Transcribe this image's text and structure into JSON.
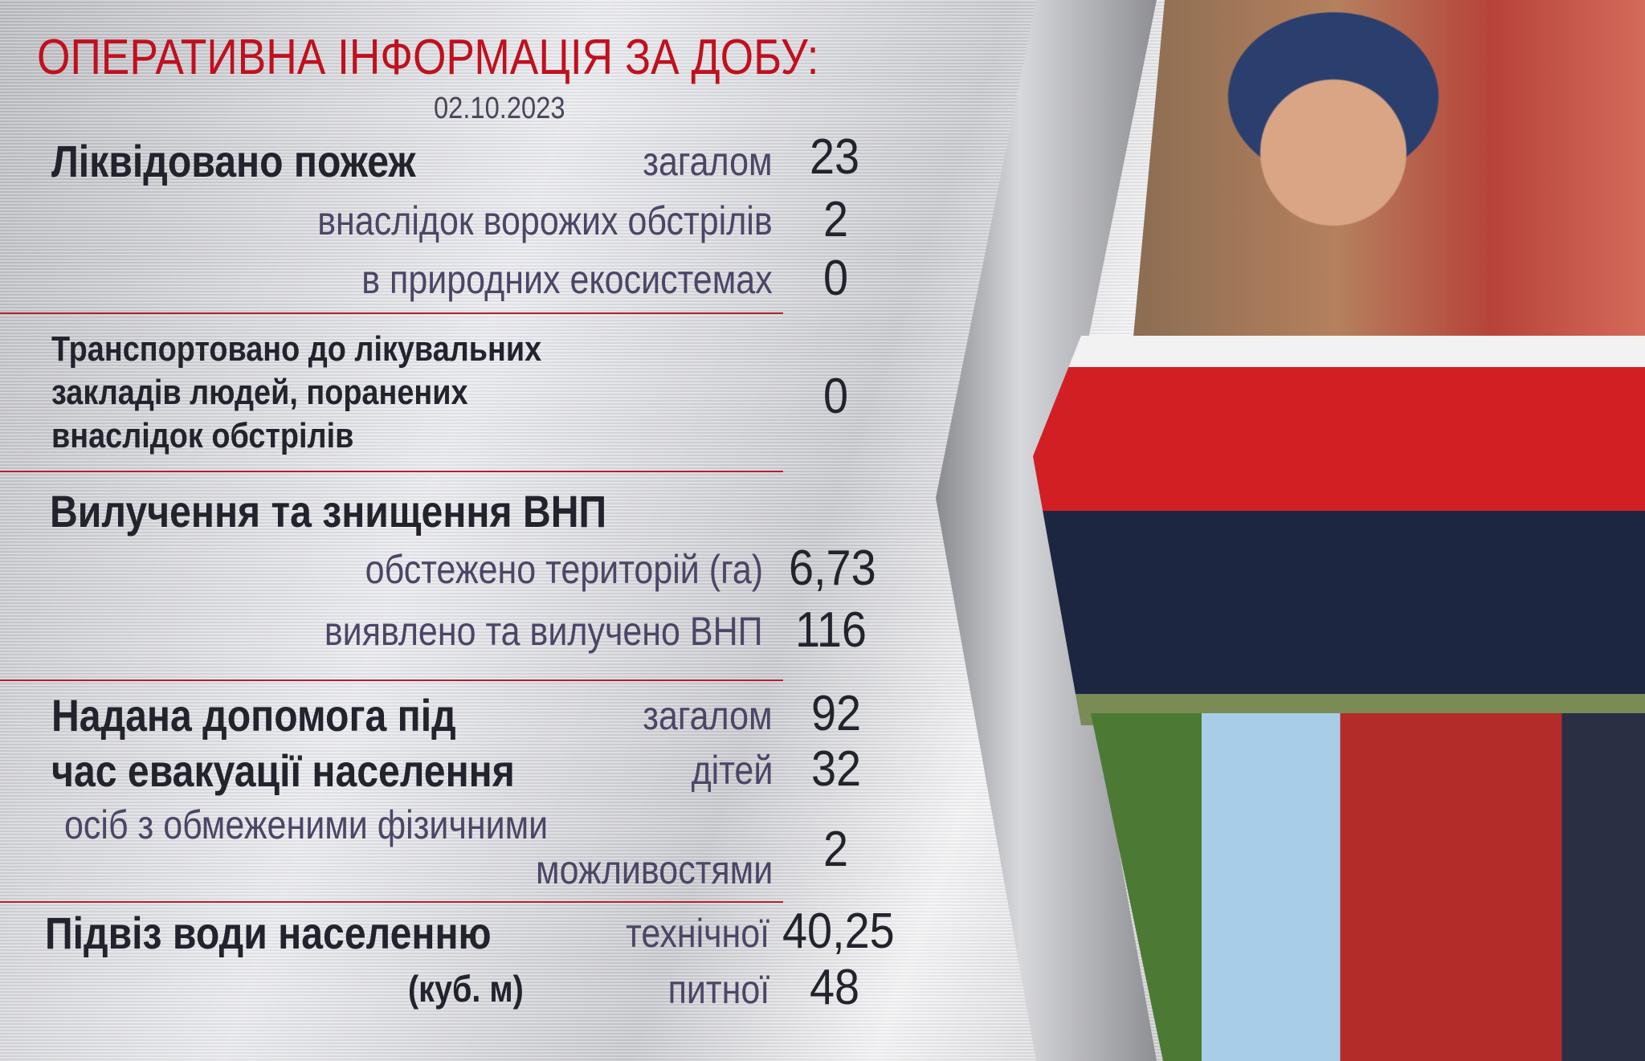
{
  "title": "ОПЕРАТИВНА  ІНФОРМАЦІЯ ЗА ДОБУ:",
  "date": "02.10.2023",
  "fires": {
    "heading": "Ліквідовано пожеж",
    "total_label": "загалом",
    "total": "23",
    "shelling_label": "внаслідок ворожих обстрілів",
    "shelling": "2",
    "eco_label": "в природних екосистемах",
    "eco": "0"
  },
  "transported": {
    "lines": [
      "Транспортовано до лікувальних",
      "закладів людей, поранених",
      "внаслідок обстрілів"
    ],
    "value": "0"
  },
  "demining": {
    "heading": "Вилучення та знищення ВНП",
    "area_label": "обстежено територій (га)",
    "area": "6,73",
    "found_label": "виявлено та вилучено ВНП",
    "found": "116"
  },
  "evacuation": {
    "heading_1": "Надана допомога під",
    "heading_2": "час евакуації населення",
    "total_label": "загалом",
    "total": "92",
    "children_label": "дітей",
    "children": "32",
    "disabled_label_1": "осіб з обмеженими фізичними",
    "disabled_label_2": "можливостями",
    "disabled": "2"
  },
  "water": {
    "heading": "Підвіз води населенню",
    "unit": "(куб. м)",
    "technical_label": "технічної",
    "technical": "40,25",
    "drinking_label": "питної",
    "drinking": "48"
  },
  "colors": {
    "title": "#c0101e",
    "divider": "#b3202c"
  }
}
